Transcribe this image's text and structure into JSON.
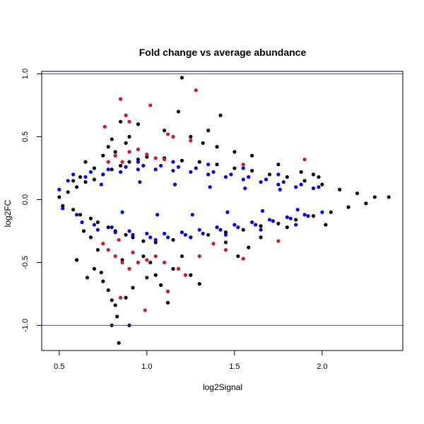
{
  "chart_data": {
    "type": "scatter",
    "title": "Fold change vs average abundance",
    "xlabel": "log2Signal",
    "ylabel": "log2FC",
    "xlim": [
      0.4,
      2.46
    ],
    "ylim": [
      -1.2,
      1.02
    ],
    "xticks": [
      0.5,
      1.0,
      1.5,
      2.0
    ],
    "xtick_labels": [
      "0.5",
      "1.0",
      "1.5",
      "2.0"
    ],
    "yticks": [
      -1.0,
      -0.5,
      0.0,
      0.5,
      1.0
    ],
    "ytick_labels": [
      "-1.0",
      "-0.5",
      "0.0",
      "0.5",
      "1.0"
    ],
    "grid": false,
    "hlines": [
      {
        "y": 1.0,
        "color": "#4444ee"
      },
      {
        "y": -1.0,
        "color": "#4444ee"
      }
    ],
    "series": [
      {
        "color": "#000000",
        "points": [
          [
            0.5,
            0.02
          ],
          [
            0.52,
            -0.05
          ],
          [
            0.55,
            0.06
          ],
          [
            0.58,
            -0.08
          ],
          [
            0.6,
            0.1
          ],
          [
            0.62,
            -0.12
          ],
          [
            0.65,
            0.14
          ],
          [
            0.68,
            -0.15
          ],
          [
            0.7,
            0.16
          ],
          [
            0.72,
            -0.18
          ],
          [
            0.75,
            0.2
          ],
          [
            0.78,
            -0.22
          ],
          [
            0.8,
            0.24
          ],
          [
            0.82,
            -0.25
          ],
          [
            0.85,
            0.27
          ],
          [
            0.88,
            -0.28
          ],
          [
            0.9,
            0.3
          ],
          [
            0.92,
            -0.3
          ],
          [
            0.95,
            0.32
          ],
          [
            0.98,
            -0.33
          ],
          [
            1.0,
            0.34
          ],
          [
            1.05,
            -0.34
          ],
          [
            1.1,
            0.33
          ],
          [
            1.15,
            -0.32
          ],
          [
            1.2,
            0.31
          ],
          [
            1.25,
            -0.3
          ],
          [
            1.3,
            0.3
          ],
          [
            1.35,
            -0.28
          ],
          [
            1.4,
            0.28
          ],
          [
            1.45,
            -0.26
          ],
          [
            1.5,
            0.25
          ],
          [
            1.55,
            -0.24
          ],
          [
            1.6,
            0.23
          ],
          [
            1.65,
            -0.21
          ],
          [
            1.7,
            0.2
          ],
          [
            1.75,
            -0.19
          ],
          [
            1.8,
            0.18
          ],
          [
            1.85,
            -0.16
          ],
          [
            1.9,
            0.15
          ],
          [
            1.95,
            -0.13
          ],
          [
            2.0,
            0.12
          ],
          [
            2.05,
            -0.1
          ],
          [
            2.1,
            0.08
          ],
          [
            2.15,
            -0.06
          ],
          [
            2.2,
            0.05
          ],
          [
            2.25,
            -0.03
          ],
          [
            2.3,
            0.02
          ],
          [
            2.38,
            0.02
          ],
          [
            1.2,
            0.97
          ],
          [
            1.18,
            0.7
          ],
          [
            1.42,
            0.67
          ],
          [
            0.95,
            0.6
          ],
          [
            1.1,
            0.55
          ],
          [
            0.6,
            -0.48
          ],
          [
            0.7,
            -0.55
          ],
          [
            0.75,
            -0.65
          ],
          [
            0.78,
            -0.72
          ],
          [
            0.8,
            -0.8
          ],
          [
            0.82,
            -0.84
          ],
          [
            0.83,
            -0.93
          ],
          [
            0.8,
            -1.0
          ],
          [
            0.84,
            -1.14
          ],
          [
            0.9,
            -1.0
          ],
          [
            0.88,
            -0.78
          ],
          [
            1.05,
            -0.6
          ],
          [
            1.08,
            -0.68
          ],
          [
            1.12,
            -0.82
          ],
          [
            1.25,
            -0.6
          ],
          [
            1.3,
            -0.67
          ],
          [
            1.2,
            -0.45
          ],
          [
            0.66,
            -0.62
          ],
          [
            0.74,
            -0.58
          ],
          [
            0.92,
            -0.7
          ],
          [
            1.0,
            -0.62
          ],
          [
            1.15,
            -0.55
          ],
          [
            0.85,
            0.62
          ],
          [
            0.88,
            0.45
          ],
          [
            0.9,
            0.5
          ],
          [
            1.25,
            0.5
          ],
          [
            1.35,
            0.55
          ],
          [
            1.32,
            0.45
          ],
          [
            1.4,
            0.42
          ],
          [
            1.5,
            0.38
          ],
          [
            1.6,
            0.35
          ],
          [
            1.75,
            0.28
          ],
          [
            1.88,
            0.22
          ],
          [
            1.95,
            0.2
          ],
          [
            1.98,
            0.18
          ],
          [
            1.52,
            -0.45
          ],
          [
            1.65,
            -0.3
          ],
          [
            1.8,
            -0.22
          ],
          [
            2.02,
            -0.2
          ],
          [
            1.45,
            -0.34
          ],
          [
            1.58,
            -0.38
          ],
          [
            0.62,
            0.18
          ],
          [
            0.58,
            0.15
          ],
          [
            0.65,
            0.3
          ],
          [
            0.7,
            0.25
          ],
          [
            0.75,
            0.35
          ],
          [
            0.78,
            0.42
          ],
          [
            0.8,
            0.48
          ],
          [
            0.82,
            0.38
          ],
          [
            0.68,
            -0.3
          ],
          [
            0.64,
            -0.25
          ],
          [
            0.72,
            -0.4
          ],
          [
            0.86,
            -0.48
          ],
          [
            0.98,
            -0.45
          ],
          [
            1.02,
            -0.5
          ]
        ]
      },
      {
        "color": "#0000ff",
        "points": [
          [
            0.55,
            0.15
          ],
          [
            0.58,
            0.2
          ],
          [
            0.6,
            -0.12
          ],
          [
            0.63,
            -0.18
          ],
          [
            0.65,
            0.18
          ],
          [
            0.68,
            0.22
          ],
          [
            0.7,
            -0.2
          ],
          [
            0.72,
            -0.24
          ],
          [
            0.75,
            0.2
          ],
          [
            0.78,
            0.24
          ],
          [
            0.8,
            -0.22
          ],
          [
            0.82,
            -0.26
          ],
          [
            0.85,
            0.22
          ],
          [
            0.88,
            0.26
          ],
          [
            0.9,
            -0.25
          ],
          [
            0.92,
            -0.28
          ],
          [
            0.95,
            0.24
          ],
          [
            0.98,
            0.27
          ],
          [
            1.0,
            -0.27
          ],
          [
            1.02,
            -0.3
          ],
          [
            1.05,
            0.24
          ],
          [
            1.08,
            0.27
          ],
          [
            1.1,
            -0.27
          ],
          [
            1.12,
            -0.3
          ],
          [
            1.15,
            0.23
          ],
          [
            1.18,
            0.26
          ],
          [
            1.2,
            -0.26
          ],
          [
            1.22,
            -0.28
          ],
          [
            1.25,
            0.22
          ],
          [
            1.28,
            0.25
          ],
          [
            1.3,
            -0.24
          ],
          [
            1.32,
            -0.27
          ],
          [
            1.35,
            0.2
          ],
          [
            1.38,
            0.22
          ],
          [
            1.4,
            -0.22
          ],
          [
            1.42,
            -0.24
          ],
          [
            1.45,
            0.18
          ],
          [
            1.48,
            0.2
          ],
          [
            1.5,
            -0.2
          ],
          [
            1.52,
            -0.22
          ],
          [
            1.55,
            0.16
          ],
          [
            1.58,
            0.18
          ],
          [
            1.6,
            -0.18
          ],
          [
            1.62,
            -0.2
          ],
          [
            1.65,
            0.14
          ],
          [
            1.68,
            0.16
          ],
          [
            1.7,
            -0.16
          ],
          [
            1.72,
            -0.17
          ],
          [
            1.75,
            0.12
          ],
          [
            1.78,
            0.14
          ],
          [
            1.8,
            -0.14
          ],
          [
            1.82,
            -0.15
          ],
          [
            1.85,
            0.1
          ],
          [
            1.88,
            0.12
          ],
          [
            1.9,
            -0.12
          ],
          [
            1.92,
            -0.13
          ],
          [
            1.95,
            0.09
          ],
          [
            1.98,
            0.1
          ],
          [
            2.0,
            -0.1
          ],
          [
            0.74,
            0.12
          ],
          [
            0.86,
            -0.1
          ],
          [
            0.96,
            0.14
          ],
          [
            1.06,
            -0.12
          ],
          [
            1.16,
            0.12
          ],
          [
            1.26,
            -0.12
          ],
          [
            1.36,
            0.1
          ],
          [
            1.46,
            -0.1
          ],
          [
            1.56,
            0.09
          ],
          [
            1.66,
            -0.09
          ],
          [
            1.76,
            0.08
          ],
          [
            1.86,
            -0.08
          ],
          [
            0.5,
            0.08
          ],
          [
            0.52,
            -0.07
          ],
          [
            0.95,
            0.3
          ],
          [
            1.05,
            -0.32
          ],
          [
            1.15,
            0.3
          ],
          [
            1.25,
            -0.3
          ],
          [
            1.35,
            0.28
          ],
          [
            1.45,
            -0.28
          ],
          [
            1.55,
            0.25
          ],
          [
            1.65,
            -0.24
          ],
          [
            1.75,
            0.2
          ],
          [
            1.85,
            -0.2
          ]
        ]
      },
      {
        "color": "#e0102a",
        "points": [
          [
            0.85,
            0.8
          ],
          [
            0.88,
            0.67
          ],
          [
            0.9,
            0.62
          ],
          [
            1.02,
            0.75
          ],
          [
            1.28,
            0.87
          ],
          [
            0.76,
            0.58
          ],
          [
            1.15,
            0.5
          ],
          [
            1.12,
            0.52
          ],
          [
            1.25,
            0.47
          ],
          [
            0.82,
            0.35
          ],
          [
            0.86,
            0.3
          ],
          [
            0.9,
            0.38
          ],
          [
            0.95,
            0.4
          ],
          [
            1.0,
            0.36
          ],
          [
            1.05,
            0.33
          ],
          [
            1.1,
            0.32
          ],
          [
            0.78,
            0.3
          ],
          [
            1.55,
            0.28
          ],
          [
            1.9,
            0.32
          ],
          [
            0.75,
            -0.35
          ],
          [
            0.78,
            -0.4
          ],
          [
            0.82,
            -0.45
          ],
          [
            0.86,
            -0.5
          ],
          [
            0.9,
            -0.55
          ],
          [
            0.95,
            -0.5
          ],
          [
            1.0,
            -0.48
          ],
          [
            1.05,
            -0.45
          ],
          [
            1.1,
            -0.5
          ],
          [
            1.18,
            -0.55
          ],
          [
            1.22,
            -0.6
          ],
          [
            0.85,
            -0.78
          ],
          [
            0.99,
            -0.88
          ],
          [
            1.12,
            -0.73
          ],
          [
            1.3,
            -0.45
          ],
          [
            1.45,
            -0.4
          ],
          [
            1.55,
            -0.47
          ],
          [
            1.38,
            -0.35
          ],
          [
            1.75,
            -0.33
          ],
          [
            0.84,
            -0.32
          ],
          [
            0.92,
            -0.42
          ]
        ]
      }
    ]
  }
}
